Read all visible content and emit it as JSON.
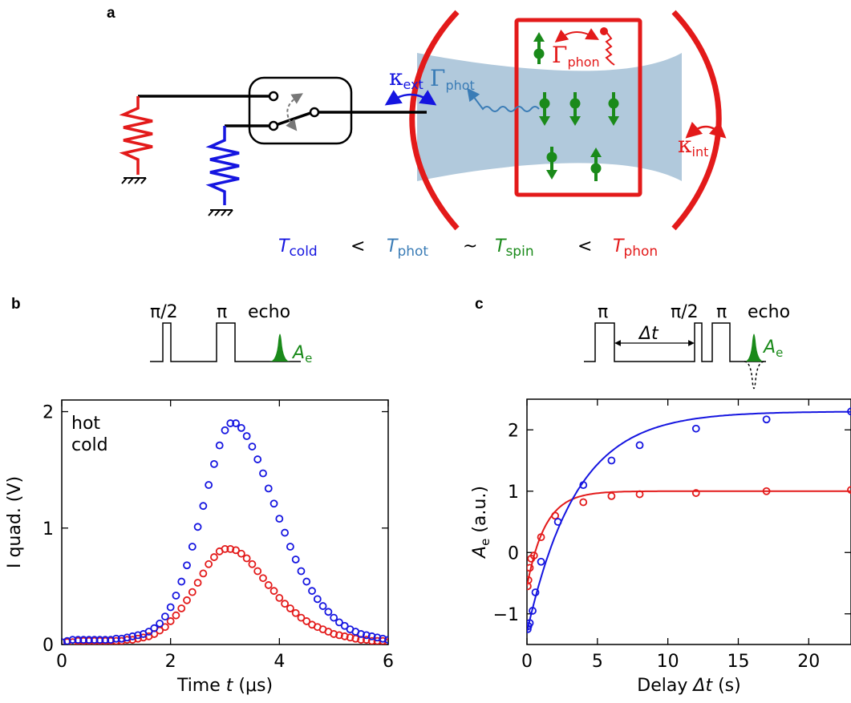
{
  "panels": {
    "a": {
      "label": "a",
      "kappa_ext": "κ",
      "kappa_ext_sub": "ext",
      "gamma_phot": "Γ",
      "gamma_phot_sub": "phot",
      "gamma_phon": "Γ",
      "gamma_phon_sub": "phon",
      "kappa_int": "κ",
      "kappa_int_sub": "int",
      "temperature_relation": [
        {
          "T": "T",
          "sub": "cold",
          "color": "#1515e0"
        },
        {
          "op": "<"
        },
        {
          "T": "T",
          "sub": "phot",
          "color": "#3a7cb6"
        },
        {
          "op": "~"
        },
        {
          "T": "T",
          "sub": "spin",
          "color": "#1a8a1a"
        },
        {
          "op": "<"
        },
        {
          "T": "T",
          "sub": "phon",
          "color": "#e31a1a"
        }
      ]
    },
    "b": {
      "label": "b",
      "seq_pi2": "π/2",
      "seq_pi": "π",
      "seq_echo": "echo",
      "seq_Ae": "A",
      "seq_Ae_sub": "e"
    },
    "c": {
      "label": "c",
      "seq_pi": "π",
      "seq_delta": "Δt",
      "seq_pi2": "π/2",
      "seq_pi_b": "π",
      "seq_echo": "echo",
      "seq_Ae": "A",
      "seq_Ae_sub": "e"
    }
  },
  "colors": {
    "hot": "#e31a1a",
    "cold": "#1515e0",
    "spin": "#1a8a1a",
    "photon": "#3a7cb6",
    "mode": "#a9c3d8"
  },
  "chart_data": [
    {
      "type": "scatter",
      "xlabel_pre": "Time ",
      "xlabel_var": "t",
      "xlabel_post": " (μs)",
      "ylabel": "I quad. (V)",
      "xlim": [
        0,
        6
      ],
      "ylim": [
        0,
        2.1
      ],
      "xticks": [
        "0",
        "2",
        "4",
        "6"
      ],
      "xtick_values": [
        0,
        2,
        4,
        6
      ],
      "yticks": [
        "0",
        "1",
        "2"
      ],
      "ytick_values": [
        0,
        1,
        2
      ],
      "legend": [
        "hot",
        "cold"
      ],
      "legend_position": "top-left",
      "series": [
        {
          "name": "hot",
          "color": "#e31a1a",
          "x": [
            0.0,
            0.1,
            0.2,
            0.3,
            0.4,
            0.5,
            0.6,
            0.7,
            0.8,
            0.9,
            1.0,
            1.1,
            1.2,
            1.3,
            1.4,
            1.5,
            1.6,
            1.7,
            1.8,
            1.9,
            2.0,
            2.1,
            2.2,
            2.3,
            2.4,
            2.5,
            2.6,
            2.7,
            2.8,
            2.9,
            3.0,
            3.1,
            3.2,
            3.3,
            3.4,
            3.5,
            3.6,
            3.7,
            3.8,
            3.9,
            4.0,
            4.1,
            4.2,
            4.3,
            4.4,
            4.5,
            4.6,
            4.7,
            4.8,
            4.9,
            5.0,
            5.1,
            5.2,
            5.3,
            5.4,
            5.5,
            5.6,
            5.7,
            5.8,
            5.9,
            6.0
          ],
          "y": [
            0.02,
            0.02,
            0.02,
            0.03,
            0.03,
            0.03,
            0.03,
            0.03,
            0.03,
            0.03,
            0.03,
            0.03,
            0.04,
            0.04,
            0.05,
            0.06,
            0.07,
            0.09,
            0.12,
            0.15,
            0.2,
            0.25,
            0.31,
            0.38,
            0.45,
            0.53,
            0.61,
            0.69,
            0.75,
            0.8,
            0.82,
            0.82,
            0.81,
            0.78,
            0.74,
            0.69,
            0.63,
            0.57,
            0.51,
            0.46,
            0.4,
            0.35,
            0.31,
            0.27,
            0.23,
            0.2,
            0.17,
            0.15,
            0.13,
            0.11,
            0.09,
            0.08,
            0.07,
            0.06,
            0.05,
            0.04,
            0.04,
            0.03,
            0.03,
            0.03,
            0.02
          ]
        },
        {
          "name": "cold",
          "color": "#1515e0",
          "x": [
            0.0,
            0.1,
            0.2,
            0.3,
            0.4,
            0.5,
            0.6,
            0.7,
            0.8,
            0.9,
            1.0,
            1.1,
            1.2,
            1.3,
            1.4,
            1.5,
            1.6,
            1.7,
            1.8,
            1.9,
            2.0,
            2.1,
            2.2,
            2.3,
            2.4,
            2.5,
            2.6,
            2.7,
            2.8,
            2.9,
            3.0,
            3.1,
            3.2,
            3.3,
            3.4,
            3.5,
            3.6,
            3.7,
            3.8,
            3.9,
            4.0,
            4.1,
            4.2,
            4.3,
            4.4,
            4.5,
            4.6,
            4.7,
            4.8,
            4.9,
            5.0,
            5.1,
            5.2,
            5.3,
            5.4,
            5.5,
            5.6,
            5.7,
            5.8,
            5.9,
            6.0
          ],
          "y": [
            0.02,
            0.03,
            0.04,
            0.04,
            0.04,
            0.04,
            0.04,
            0.04,
            0.04,
            0.04,
            0.05,
            0.05,
            0.06,
            0.07,
            0.08,
            0.09,
            0.11,
            0.14,
            0.18,
            0.24,
            0.32,
            0.42,
            0.54,
            0.68,
            0.84,
            1.01,
            1.19,
            1.37,
            1.55,
            1.71,
            1.84,
            1.9,
            1.9,
            1.86,
            1.79,
            1.7,
            1.59,
            1.47,
            1.34,
            1.21,
            1.08,
            0.96,
            0.84,
            0.73,
            0.63,
            0.54,
            0.46,
            0.39,
            0.33,
            0.28,
            0.23,
            0.19,
            0.16,
            0.13,
            0.11,
            0.09,
            0.08,
            0.07,
            0.06,
            0.05,
            0.04
          ]
        }
      ]
    },
    {
      "type": "scatter",
      "xlabel_pre": "Delay ",
      "xlabel_var": "Δt",
      "xlabel_post": " (s)",
      "ylabel_var": "A",
      "ylabel_sub": "e",
      "ylabel_post": " (a.u.)",
      "xlim": [
        0,
        23
      ],
      "ylim": [
        -1.5,
        2.5
      ],
      "xticks": [
        "0",
        "5",
        "10",
        "15",
        "20"
      ],
      "xtick_values": [
        0,
        5,
        10,
        15,
        20
      ],
      "yticks": [
        "−1",
        "0",
        "1",
        "2"
      ],
      "ytick_values": [
        -1,
        0,
        1,
        2
      ],
      "series": [
        {
          "name": "hot",
          "color": "#e31a1a",
          "x": [
            0.05,
            0.1,
            0.2,
            0.3,
            0.5,
            1.0,
            2.0,
            4.0,
            6.0,
            8.0,
            12.0,
            17.0,
            23.0
          ],
          "y": [
            -0.55,
            -0.45,
            -0.25,
            -0.1,
            -0.05,
            0.25,
            0.6,
            0.82,
            0.92,
            0.95,
            0.97,
            1.0,
            1.02
          ],
          "fit": {
            "a": 1.0,
            "b": 1.55,
            "tau": 1.3
          }
        },
        {
          "name": "cold",
          "color": "#1515e0",
          "x": [
            0.05,
            0.1,
            0.2,
            0.4,
            0.6,
            1.0,
            2.2,
            4.0,
            6.0,
            8.0,
            12.0,
            17.0,
            23.0
          ],
          "y": [
            -1.25,
            -1.2,
            -1.15,
            -0.95,
            -0.65,
            -0.15,
            0.5,
            1.1,
            1.5,
            1.75,
            2.02,
            2.17,
            2.3
          ],
          "fit": {
            "a": 2.3,
            "b": 3.6,
            "tau": 3.5
          }
        }
      ]
    }
  ]
}
